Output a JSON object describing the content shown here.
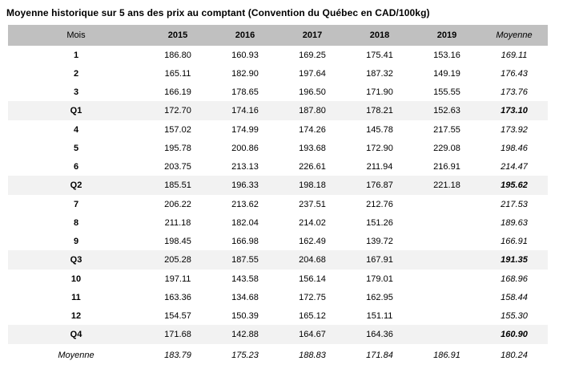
{
  "title": "Moyenne historique sur 5 ans des prix au comptant (Convention du Québec en CAD/100kg)",
  "chart_data": {
    "type": "table",
    "title": "Moyenne historique sur 5 ans des prix au comptant (Convention du Québec en CAD/100kg)",
    "columns": [
      "Mois",
      "2015",
      "2016",
      "2017",
      "2018",
      "2019",
      "Moyenne"
    ],
    "rows": [
      {
        "label": "1",
        "type": "month",
        "values": [
          "186.80",
          "160.93",
          "169.25",
          "175.41",
          "153.16",
          "169.11"
        ]
      },
      {
        "label": "2",
        "type": "month",
        "values": [
          "165.11",
          "182.90",
          "197.64",
          "187.32",
          "149.19",
          "176.43"
        ]
      },
      {
        "label": "3",
        "type": "month",
        "values": [
          "166.19",
          "178.65",
          "196.50",
          "171.90",
          "155.55",
          "173.76"
        ]
      },
      {
        "label": "Q1",
        "type": "quarter",
        "values": [
          "172.70",
          "174.16",
          "187.80",
          "178.21",
          "152.63",
          "173.10"
        ]
      },
      {
        "label": "4",
        "type": "month",
        "values": [
          "157.02",
          "174.99",
          "174.26",
          "145.78",
          "217.55",
          "173.92"
        ]
      },
      {
        "label": "5",
        "type": "month",
        "values": [
          "195.78",
          "200.86",
          "193.68",
          "172.90",
          "229.08",
          "198.46"
        ]
      },
      {
        "label": "6",
        "type": "month",
        "values": [
          "203.75",
          "213.13",
          "226.61",
          "211.94",
          "216.91",
          "214.47"
        ]
      },
      {
        "label": "Q2",
        "type": "quarter",
        "values": [
          "185.51",
          "196.33",
          "198.18",
          "176.87",
          "221.18",
          "195.62"
        ]
      },
      {
        "label": "7",
        "type": "month",
        "values": [
          "206.22",
          "213.62",
          "237.51",
          "212.76",
          "",
          "217.53"
        ]
      },
      {
        "label": "8",
        "type": "month",
        "values": [
          "211.18",
          "182.04",
          "214.02",
          "151.26",
          "",
          "189.63"
        ]
      },
      {
        "label": "9",
        "type": "month",
        "values": [
          "198.45",
          "166.98",
          "162.49",
          "139.72",
          "",
          "166.91"
        ]
      },
      {
        "label": "Q3",
        "type": "quarter",
        "values": [
          "205.28",
          "187.55",
          "204.68",
          "167.91",
          "",
          "191.35"
        ]
      },
      {
        "label": "10",
        "type": "month",
        "values": [
          "197.11",
          "143.58",
          "156.14",
          "179.01",
          "",
          "168.96"
        ]
      },
      {
        "label": "11",
        "type": "month",
        "values": [
          "163.36",
          "134.68",
          "172.75",
          "162.95",
          "",
          "158.44"
        ]
      },
      {
        "label": "12",
        "type": "month",
        "values": [
          "154.57",
          "150.39",
          "165.12",
          "151.11",
          "",
          "155.30"
        ]
      },
      {
        "label": "Q4",
        "type": "quarter",
        "values": [
          "171.68",
          "142.88",
          "164.67",
          "164.36",
          "",
          "160.90"
        ]
      },
      {
        "label": "Moyenne",
        "type": "average",
        "values": [
          "183.79",
          "175.23",
          "188.83",
          "171.84",
          "186.91",
          "180.24"
        ]
      }
    ]
  },
  "colors": {
    "header_bg": "#c0c0c0",
    "quarter_row_bg": "#f2f2f2",
    "text": "#000000",
    "page_bg": "#ffffff"
  }
}
